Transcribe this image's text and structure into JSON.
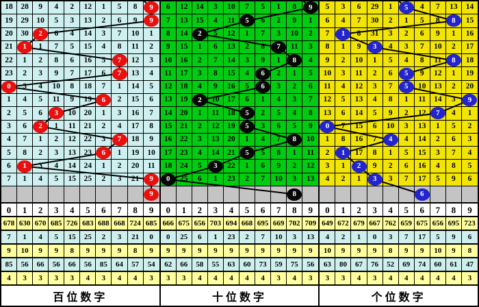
{
  "chart_data": {
    "type": "table",
    "shared_colors": {
      "grid_line": "#000000",
      "trend_line": "#000000",
      "gray_row_bg": "#c4c4c4",
      "header_bg": "#ffffff",
      "stats_yellow_bg": "#ffff9e",
      "stats_cyan_bg": "#cfefef",
      "label_bg": "#ffffff"
    },
    "panels": [
      {
        "id": "hundreds",
        "label": "百位数字",
        "colors": {
          "cell": "#cff0f0",
          "circle": "#e8100f"
        },
        "digit_headers": [
          "0",
          "1",
          "2",
          "3",
          "4",
          "5",
          "6",
          "7",
          "8",
          "9"
        ],
        "rows": [
          {
            "cells": [
              "18",
              "28",
              "9",
              "4",
              "2",
              "12",
              "1",
              "5",
              "8",
              "9"
            ],
            "mark": 9
          },
          {
            "cells": [
              "19",
              "29",
              "10",
              "5",
              "3",
              "13",
              "2",
              "6",
              "9",
              "9"
            ],
            "mark": 9
          },
          {
            "cells": [
              "20",
              "30",
              "2",
              "6",
              "4",
              "14",
              "3",
              "7",
              "10",
              "1"
            ],
            "mark": 2
          },
          {
            "cells": [
              "21",
              "1",
              "1",
              "7",
              "5",
              "15",
              "4",
              "8",
              "11",
              "2"
            ],
            "mark": 1
          },
          {
            "cells": [
              "22",
              "1",
              "2",
              "8",
              "6",
              "16",
              "5",
              "7",
              "12",
              "3"
            ],
            "mark": 7
          },
          {
            "cells": [
              "23",
              "2",
              "3",
              "9",
              "7",
              "17",
              "6",
              "7",
              "13",
              "4"
            ],
            "mark": 7
          },
          {
            "cells": [
              "0",
              "3",
              "4",
              "10",
              "8",
              "18",
              "7",
              "1",
              "14",
              "5"
            ],
            "mark": 0
          },
          {
            "cells": [
              "1",
              "4",
              "5",
              "11",
              "9",
              "19",
              "6",
              "2",
              "15",
              "6"
            ],
            "mark": 6
          },
          {
            "cells": [
              "2",
              "5",
              "6",
              "3",
              "10",
              "20",
              "1",
              "3",
              "16",
              "7"
            ],
            "mark": 3
          },
          {
            "cells": [
              "3",
              "6",
              "2",
              "1",
              "11",
              "21",
              "2",
              "4",
              "17",
              "8"
            ],
            "mark": 2
          },
          {
            "cells": [
              "4",
              "7",
              "1",
              "2",
              "12",
              "22",
              "3",
              "7",
              "18",
              "9"
            ],
            "mark": 7
          },
          {
            "cells": [
              "5",
              "8",
              "2",
              "3",
              "13",
              "23",
              "6",
              "1",
              "19",
              "10"
            ],
            "mark": 6
          },
          {
            "cells": [
              "6",
              "1",
              "3",
              "4",
              "14",
              "24",
              "1",
              "2",
              "20",
              "11"
            ],
            "mark": 1
          },
          {
            "cells": [
              "7",
              "1",
              "4",
              "5",
              "15",
              "25",
              "2",
              "3",
              "21",
              "9"
            ],
            "mark": 9
          }
        ],
        "pending": {
          "col": 9,
          "value": "9"
        },
        "stats": [
          [
            "678",
            "630",
            "670",
            "685",
            "726",
            "683",
            "688",
            "668",
            "724",
            "685"
          ],
          [
            "7",
            "1",
            "4",
            "5",
            "15",
            "25",
            "2",
            "3",
            "21",
            "0"
          ],
          [
            "9",
            "10",
            "9",
            "9",
            "8",
            "9",
            "9",
            "9",
            "8",
            "9"
          ],
          [
            "85",
            "56",
            "66",
            "56",
            "66",
            "56",
            "85",
            "64",
            "57",
            "54"
          ],
          [
            "4",
            "3",
            "3",
            "3",
            "3",
            "4",
            "3",
            "4",
            "4",
            "3"
          ]
        ]
      },
      {
        "id": "tens",
        "label": "十位数字",
        "colors": {
          "cell": "#00cd11",
          "circle": "#070707"
        },
        "digit_headers": [
          "0",
          "1",
          "2",
          "3",
          "4",
          "5",
          "6",
          "7",
          "8",
          "9"
        ],
        "rows": [
          {
            "cells": [
              "6",
              "12",
              "14",
              "3",
              "10",
              "7",
              "5",
              "1",
              "8",
              "9"
            ],
            "mark": 9
          },
          {
            "cells": [
              "7",
              "13",
              "15",
              "4",
              "11",
              "5",
              "6",
              "2",
              "9",
              "1"
            ],
            "mark": 5
          },
          {
            "cells": [
              "8",
              "14",
              "2",
              "5",
              "12",
              "1",
              "7",
              "3",
              "10",
              "2"
            ],
            "mark": 2
          },
          {
            "cells": [
              "9",
              "15",
              "1",
              "6",
              "13",
              "2",
              "8",
              "7",
              "11",
              "3"
            ],
            "mark": 7
          },
          {
            "cells": [
              "10",
              "16",
              "2",
              "7",
              "14",
              "3",
              "9",
              "1",
              "8",
              "4"
            ],
            "mark": 8
          },
          {
            "cells": [
              "11",
              "17",
              "3",
              "8",
              "15",
              "4",
              "6",
              "2",
              "1",
              "5"
            ],
            "mark": 6
          },
          {
            "cells": [
              "12",
              "18",
              "4",
              "9",
              "16",
              "5",
              "6",
              "3",
              "2",
              "6"
            ],
            "mark": 6
          },
          {
            "cells": [
              "13",
              "19",
              "2",
              "10",
              "17",
              "6",
              "1",
              "4",
              "3",
              "7"
            ],
            "mark": 2
          },
          {
            "cells": [
              "14",
              "20",
              "1",
              "11",
              "18",
              "5",
              "2",
              "5",
              "4",
              "8"
            ],
            "mark": 5
          },
          {
            "cells": [
              "15",
              "21",
              "2",
              "12",
              "19",
              "5",
              "3",
              "6",
              "5",
              "9"
            ],
            "mark": 5
          },
          {
            "cells": [
              "16",
              "22",
              "3",
              "13",
              "20",
              "1",
              "4",
              "7",
              "8",
              "10"
            ],
            "mark": 8
          },
          {
            "cells": [
              "17",
              "23",
              "4",
              "14",
              "21",
              "5",
              "5",
              "8",
              "1",
              "11"
            ],
            "mark": 5
          },
          {
            "cells": [
              "18",
              "24",
              "5",
              "3",
              "22",
              "1",
              "6",
              "9",
              "2",
              "12"
            ],
            "mark": 3
          },
          {
            "cells": [
              "0",
              "25",
              "6",
              "1",
              "23",
              "2",
              "7",
              "10",
              "3",
              "13"
            ],
            "mark": 0
          }
        ],
        "pending": {
          "col": 8,
          "value": "8"
        },
        "stats": [
          [
            "666",
            "675",
            "656",
            "703",
            "694",
            "668",
            "695",
            "669",
            "702",
            "709"
          ],
          [
            "0",
            "25",
            "6",
            "1",
            "23",
            "2",
            "7",
            "10",
            "3",
            "13"
          ],
          [
            "9",
            "9",
            "9",
            "9",
            "9",
            "9",
            "9",
            "9",
            "9",
            "9"
          ],
          [
            "62",
            "66",
            "58",
            "55",
            "63",
            "60",
            "73",
            "59",
            "75",
            "56"
          ],
          [
            "3",
            "3",
            "4",
            "4",
            "4",
            "4",
            "4",
            "3",
            "4",
            "3"
          ]
        ]
      },
      {
        "id": "units",
        "label": "个位数字",
        "colors": {
          "cell": "#f2e404",
          "circle": "#2324cd"
        },
        "digit_headers": [
          "0",
          "1",
          "2",
          "3",
          "4",
          "5",
          "6",
          "7",
          "8",
          "9"
        ],
        "rows": [
          {
            "cells": [
              "5",
              "3",
              "6",
              "29",
              "1",
              "5",
              "4",
              "7",
              "13",
              "14"
            ],
            "mark": 5
          },
          {
            "cells": [
              "6",
              "4",
              "7",
              "30",
              "2",
              "1",
              "5",
              "8",
              "8",
              "15"
            ],
            "mark": 8
          },
          {
            "cells": [
              "7",
              "1",
              "8",
              "31",
              "3",
              "2",
              "6",
              "9",
              "1",
              "16"
            ],
            "mark": 1
          },
          {
            "cells": [
              "8",
              "1",
              "9",
              "3",
              "4",
              "3",
              "7",
              "10",
              "2",
              "17"
            ],
            "mark": 3
          },
          {
            "cells": [
              "9",
              "2",
              "10",
              "1",
              "5",
              "4",
              "8",
              "11",
              "8",
              "18"
            ],
            "mark": 8
          },
          {
            "cells": [
              "10",
              "3",
              "11",
              "2",
              "6",
              "5",
              "9",
              "12",
              "1",
              "19"
            ],
            "mark": 5
          },
          {
            "cells": [
              "11",
              "4",
              "12",
              "3",
              "7",
              "5",
              "10",
              "13",
              "2",
              "20"
            ],
            "mark": 5
          },
          {
            "cells": [
              "12",
              "5",
              "13",
              "4",
              "8",
              "1",
              "11",
              "14",
              "3",
              "9"
            ],
            "mark": 9
          },
          {
            "cells": [
              "13",
              "6",
              "14",
              "5",
              "9",
              "2",
              "12",
              "7",
              "4",
              "1"
            ],
            "mark": 7
          },
          {
            "cells": [
              "0",
              "7",
              "15",
              "6",
              "10",
              "3",
              "13",
              "1",
              "5",
              "2"
            ],
            "mark": 0
          },
          {
            "cells": [
              "1",
              "8",
              "16",
              "7",
              "4",
              "4",
              "14",
              "2",
              "6",
              "3"
            ],
            "mark": 4
          },
          {
            "cells": [
              "2",
              "1",
              "17",
              "8",
              "1",
              "5",
              "15",
              "3",
              "7",
              "4"
            ],
            "mark": 1
          },
          {
            "cells": [
              "3",
              "1",
              "2",
              "9",
              "2",
              "6",
              "16",
              "4",
              "8",
              "5"
            ],
            "mark": 2
          },
          {
            "cells": [
              "4",
              "2",
              "1",
              "3",
              "3",
              "7",
              "17",
              "5",
              "9",
              "6"
            ],
            "mark": 3
          }
        ],
        "pending": {
          "col": 6,
          "value": "6"
        },
        "stats": [
          [
            "649",
            "672",
            "679",
            "667",
            "762",
            "659",
            "675",
            "656",
            "695",
            "723"
          ],
          [
            "4",
            "2",
            "1",
            "0",
            "3",
            "7",
            "17",
            "5",
            "9",
            "6"
          ],
          [
            "10",
            "9",
            "9",
            "9",
            "8",
            "9",
            "9",
            "10",
            "9",
            "8"
          ],
          [
            "63",
            "80",
            "67",
            "76",
            "52",
            "69",
            "74",
            "60",
            "61",
            "47"
          ],
          [
            "3",
            "3",
            "4",
            "3",
            "4",
            "4",
            "4",
            "4",
            "4",
            "3"
          ]
        ]
      }
    ]
  }
}
